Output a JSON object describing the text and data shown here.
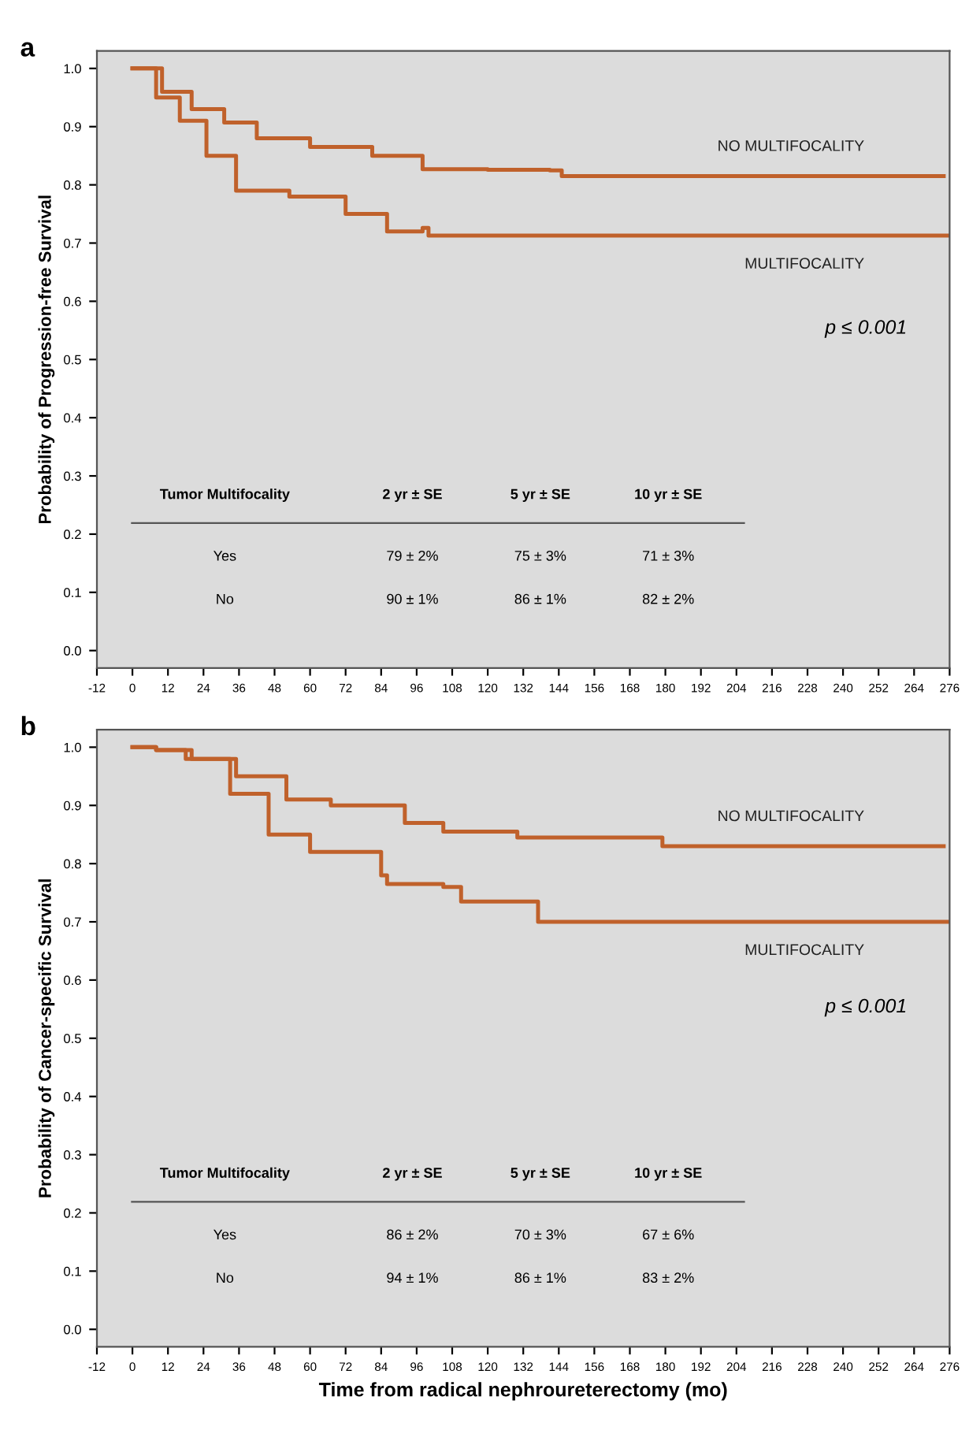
{
  "chart_data": [
    {
      "type": "step",
      "title": "a",
      "ylabel": "Probability of Progression-free Survival",
      "series": [
        {
          "name": "NO MULTIFOCALITY",
          "color": "#c0612b",
          "x": [
            0,
            10,
            20,
            31,
            42,
            60,
            81,
            98,
            120,
            141,
            145,
            200,
            274
          ],
          "values": [
            1.0,
            0.96,
            0.93,
            0.907,
            0.88,
            0.865,
            0.85,
            0.827,
            0.826,
            0.825,
            0.815,
            0.815,
            0.815
          ]
        },
        {
          "name": "MULTIFOCALITY",
          "color": "#c0612b",
          "x": [
            0,
            8,
            16,
            25,
            35,
            53,
            72,
            86,
            98,
            100,
            150,
            276
          ],
          "values": [
            1.0,
            0.95,
            0.91,
            0.85,
            0.79,
            0.78,
            0.75,
            0.72,
            0.726,
            0.713,
            0.713,
            0.713
          ]
        }
      ],
      "xlim": [
        -12,
        276
      ],
      "xticks": [
        -12,
        0,
        12,
        24,
        36,
        48,
        60,
        72,
        84,
        96,
        108,
        120,
        132,
        144,
        156,
        168,
        180,
        192,
        204,
        216,
        228,
        240,
        252,
        264,
        276
      ],
      "ylim": [
        -0.03,
        1.03
      ],
      "yticks": [
        {
          "value": 0,
          "label": "0.0"
        },
        {
          "value": 0.1,
          "label": "0.1"
        },
        {
          "value": 0.2,
          "label": "0.2"
        },
        {
          "value": 0.3,
          "label": "0.3"
        },
        {
          "value": 0.4,
          "label": "0.4"
        },
        {
          "value": 0.5,
          "label": "0.5"
        },
        {
          "value": 0.6,
          "label": "0.6"
        },
        {
          "value": 0.7,
          "label": "0.7"
        },
        {
          "value": 0.8,
          "label": "0.8"
        },
        {
          "value": 0.9,
          "label": "0.9"
        },
        {
          "value": 1.0,
          "label": "1.0"
        }
      ],
      "grid": false,
      "legend": false,
      "annotations": [
        "p ≤ 0.001",
        "Tumor Multifocality",
        "2 yr ± SE",
        "5 yr ± SE",
        "10 yr ± SE",
        "Yes",
        "79 ± 2%",
        "75 ± 3%",
        "71 ± 3%",
        "No",
        "90 ± 1%",
        "86 ± 1%",
        "82 ± 2%"
      ]
    },
    {
      "type": "step",
      "title": "b",
      "ylabel": "Probability of Cancer-specific Survival",
      "xlabel": "Time from radical nephroureterectomy (mo)",
      "series": [
        {
          "name": "NO MULTIFOCALITY",
          "color": "#c0612b",
          "x": [
            0,
            8,
            20,
            35,
            52,
            67,
            92,
            105,
            130,
            178,
            179,
            274
          ],
          "values": [
            1.0,
            0.995,
            0.98,
            0.95,
            0.91,
            0.9,
            0.87,
            0.855,
            0.845,
            0.845,
            0.83,
            0.83
          ]
        },
        {
          "name": "MULTIFOCALITY",
          "color": "#c0612b",
          "x": [
            0,
            8,
            18,
            33,
            46,
            60,
            70,
            84,
            86,
            105,
            111,
            136,
            137,
            276
          ],
          "values": [
            1.0,
            0.995,
            0.98,
            0.92,
            0.85,
            0.82,
            0.82,
            0.78,
            0.765,
            0.76,
            0.735,
            0.735,
            0.7,
            0.7
          ]
        }
      ],
      "xlim": [
        -12,
        276
      ],
      "xticks": [
        -12,
        0,
        12,
        24,
        36,
        48,
        60,
        72,
        84,
        96,
        108,
        120,
        132,
        144,
        156,
        168,
        180,
        192,
        204,
        216,
        228,
        240,
        252,
        264,
        276
      ],
      "ylim": [
        -0.03,
        1.03
      ],
      "yticks": [
        {
          "value": 0,
          "label": "0.0"
        },
        {
          "value": 0.1,
          "label": "0.1"
        },
        {
          "value": 0.2,
          "label": "0.2"
        },
        {
          "value": 0.3,
          "label": "0.3"
        },
        {
          "value": 0.4,
          "label": "0.4"
        },
        {
          "value": 0.5,
          "label": "0.5"
        },
        {
          "value": 0.6,
          "label": "0.6"
        },
        {
          "value": 0.7,
          "label": "0.7"
        },
        {
          "value": 0.8,
          "label": "0.8"
        },
        {
          "value": 0.9,
          "label": "0.9"
        },
        {
          "value": 1.0,
          "label": "1.0"
        }
      ],
      "grid": false,
      "legend": false,
      "annotations": [
        "p ≤ 0.001",
        "Tumor Multifocality",
        "2 yr ± SE",
        "5 yr ± SE",
        "10 yr ± SE",
        "Yes",
        "86 ± 2%",
        "70 ± 3%",
        "67 ± 6%",
        "No",
        "94 ± 1%",
        "86 ± 1%",
        "83 ± 2%"
      ]
    }
  ]
}
